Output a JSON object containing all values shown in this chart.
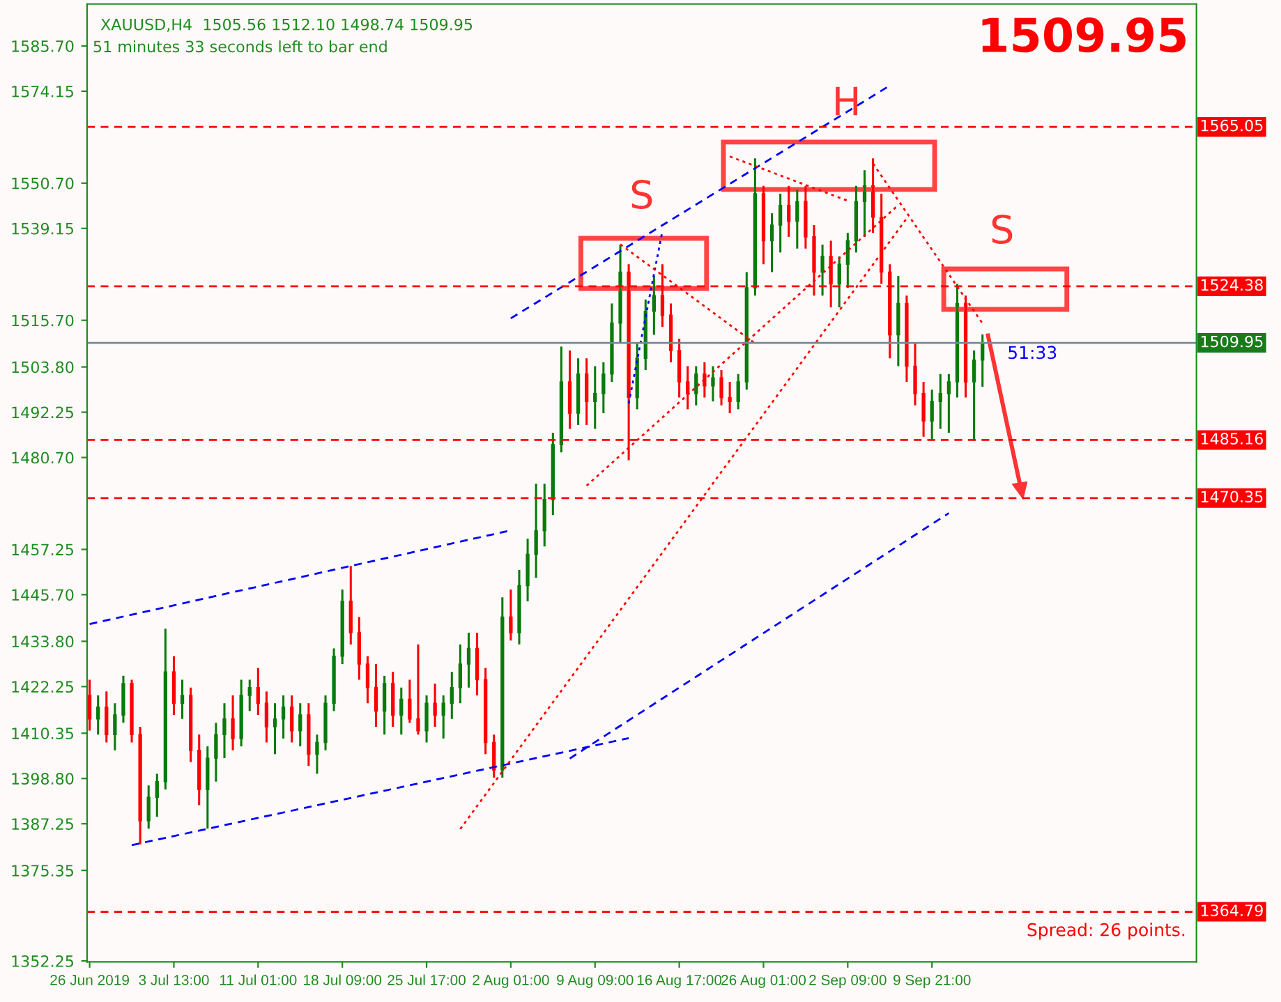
{
  "chart_data": {
    "type": "candlestick",
    "title": "XAUUSD,H4  1505.56 1512.10 1498.74 1509.95",
    "subtitle": "51 minutes 33 seconds left to bar end",
    "colors": [
      "#ff0000",
      "#0a7a0a",
      "#ff0000",
      "#0a7a0a",
      "#0a7a0a",
      "#ff0000",
      "#ff0000",
      "#0a7a0a",
      "#0a7a0a",
      "#0a7a0a",
      "#ff0000",
      "#0a7a0a",
      "#ff0000",
      "#ff0000",
      "#0a7a0a",
      "#0a7a0a",
      "#0a7a0a",
      "#ff0000",
      "#0a7a0a",
      "#0a7a0a",
      "#ff0000",
      "#ff0000",
      "#0a7a0a",
      "#0a7a0a",
      "#ff0000",
      "#0a7a0a",
      "#ff0000",
      "#0a7a0a",
      "#0a7a0a",
      "#0a7a0a",
      "#0a7a0a",
      "#ff0000",
      "#ff0000",
      "#ff0000",
      "#ff0000",
      "#0a7a0a",
      "#ff0000",
      "#0a7a0a",
      "#ff0000",
      "#ff0000",
      "#0a7a0a",
      "#ff0000",
      "#0a7a0a",
      "#0a7a0a",
      "#0a7a0a",
      "#0a7a0a",
      "#ff0000",
      "#ff0000",
      "#ff0000",
      "#0a7a0a",
      "#ff0000",
      "#0a7a0a",
      "#0a7a0a",
      "#0a7a0a",
      "#0a7a0a",
      "#0a7a0a",
      "#0a7a0a",
      "#ff0000",
      "#0a7a0a",
      "#ff0000",
      "#0a7a0a",
      "#0a7a0a",
      "#0a7a0a",
      "#0a7a0a",
      "#ff0000",
      "#0a7a0a",
      "#0a7a0a",
      "#0a7a0a",
      "#ff0000",
      "#ff0000",
      "#ff0000",
      "#ff0000",
      "#0a7a0a",
      "#ff0000",
      "#0a7a0a",
      "#ff0000",
      "#ff0000",
      "#0a7a0a",
      "#0a7a0a",
      "#0a7a0a",
      "#ff0000",
      "#0a7a0a",
      "#0a7a0a",
      "#ff0000",
      "#0a7a0a",
      "#ff0000",
      "#ff0000",
      "#0a7a0a",
      "#ff0000",
      "#0a7a0a",
      "#0a7a0a",
      "#0a7a0a",
      "#0a7a0a",
      "#ff0000",
      "#ff0000",
      "#ff0000",
      "#0a7a0a",
      "#ff0000",
      "#ff0000",
      "#ff0000",
      "#0a7a0a",
      "#0a7a0a",
      "#0a7a0a",
      "#0a7a0a",
      "#ff0000",
      "#0a7a0a",
      "#0a7a0a"
    ],
    "categories": [
      "26 Jun 2019",
      null,
      null,
      null,
      null,
      null,
      null,
      null,
      null,
      null,
      "3 Jul 13:00",
      null,
      null,
      null,
      null,
      null,
      null,
      null,
      null,
      null,
      "11 Jul 01:00",
      null,
      null,
      null,
      null,
      null,
      null,
      null,
      null,
      null,
      "18 Jul 09:00",
      null,
      null,
      null,
      null,
      null,
      null,
      null,
      null,
      null,
      "25 Jul 17:00",
      null,
      null,
      null,
      null,
      null,
      null,
      null,
      null,
      null,
      "2 Aug 01:00",
      null,
      null,
      null,
      null,
      null,
      null,
      null,
      null,
      null,
      "9 Aug 09:00",
      null,
      null,
      null,
      null,
      null,
      null,
      null,
      null,
      null,
      "16 Aug 17:00",
      null,
      null,
      null,
      null,
      null,
      null,
      null,
      null,
      null,
      "26 Aug 01:00",
      null,
      null,
      null,
      null,
      null,
      null,
      null,
      null,
      null,
      "2 Sep 09:00",
      null,
      null,
      null,
      null,
      null,
      null,
      null,
      null,
      null,
      "9 Sep 21:00",
      null,
      null,
      null,
      null,
      null,
      null
    ],
    "ohlc": [
      [
        1420,
        1424,
        1411,
        1414
      ],
      [
        1414,
        1420,
        1410,
        1417
      ],
      [
        1417,
        1421,
        1408,
        1410
      ],
      [
        1410,
        1418,
        1406,
        1415
      ],
      [
        1415,
        1425,
        1413,
        1423
      ],
      [
        1423,
        1424,
        1408,
        1410
      ],
      [
        1410,
        1412,
        1382,
        1388
      ],
      [
        1388,
        1397,
        1386,
        1394
      ],
      [
        1394,
        1400,
        1389,
        1398
      ],
      [
        1398,
        1437,
        1396,
        1426
      ],
      [
        1426,
        1430,
        1415,
        1418
      ],
      [
        1418,
        1424,
        1414,
        1420
      ],
      [
        1420,
        1422,
        1403,
        1406
      ],
      [
        1406,
        1410,
        1392,
        1396
      ],
      [
        1396,
        1407,
        1386,
        1404
      ],
      [
        1404,
        1413,
        1398,
        1410
      ],
      [
        1410,
        1418,
        1404,
        1414
      ],
      [
        1414,
        1420,
        1406,
        1409
      ],
      [
        1409,
        1424,
        1407,
        1420
      ],
      [
        1420,
        1424,
        1416,
        1422
      ],
      [
        1422,
        1427,
        1415,
        1418
      ],
      [
        1418,
        1421,
        1408,
        1412
      ],
      [
        1412,
        1418,
        1405,
        1414
      ],
      [
        1414,
        1420,
        1409,
        1417
      ],
      [
        1417,
        1420,
        1408,
        1411
      ],
      [
        1411,
        1418,
        1407,
        1415
      ],
      [
        1415,
        1418,
        1402,
        1405
      ],
      [
        1405,
        1410,
        1400,
        1408
      ],
      [
        1408,
        1420,
        1406,
        1418
      ],
      [
        1418,
        1432,
        1416,
        1430
      ],
      [
        1430,
        1447,
        1428,
        1444
      ],
      [
        1444,
        1453,
        1433,
        1436
      ],
      [
        1436,
        1440,
        1424,
        1428
      ],
      [
        1428,
        1430,
        1418,
        1422
      ],
      [
        1422,
        1428,
        1412,
        1416
      ],
      [
        1416,
        1425,
        1410,
        1423
      ],
      [
        1423,
        1426,
        1412,
        1415
      ],
      [
        1415,
        1422,
        1410,
        1419
      ],
      [
        1419,
        1424,
        1413,
        1414
      ],
      [
        1414,
        1433,
        1410,
        1411
      ],
      [
        1411,
        1420,
        1408,
        1418
      ],
      [
        1418,
        1423,
        1412,
        1415
      ],
      [
        1415,
        1420,
        1409,
        1418
      ],
      [
        1418,
        1426,
        1414,
        1422
      ],
      [
        1422,
        1433,
        1418,
        1428
      ],
      [
        1428,
        1436,
        1422,
        1432
      ],
      [
        1432,
        1436,
        1420,
        1424
      ],
      [
        1424,
        1427,
        1405,
        1408
      ],
      [
        1408,
        1410,
        1399,
        1401
      ],
      [
        1401,
        1445,
        1399,
        1440
      ],
      [
        1440,
        1447,
        1434,
        1436
      ],
      [
        1436,
        1452,
        1433,
        1448
      ],
      [
        1448,
        1460,
        1444,
        1456
      ],
      [
        1456,
        1474,
        1450,
        1462
      ],
      [
        1462,
        1474,
        1458,
        1470
      ],
      [
        1470,
        1487,
        1466,
        1484
      ],
      [
        1484,
        1509,
        1482,
        1500
      ],
      [
        1500,
        1508,
        1488,
        1492
      ],
      [
        1492,
        1506,
        1489,
        1502
      ],
      [
        1502,
        1506,
        1489,
        1495
      ],
      [
        1495,
        1504,
        1488,
        1497
      ],
      [
        1497,
        1505,
        1492,
        1502
      ],
      [
        1502,
        1520,
        1500,
        1515
      ],
      [
        1515,
        1535,
        1510,
        1528
      ],
      [
        1528,
        1530,
        1480,
        1496
      ],
      [
        1496,
        1510,
        1493,
        1506
      ],
      [
        1506,
        1521,
        1503,
        1518
      ],
      [
        1518,
        1527,
        1512,
        1522
      ],
      [
        1522,
        1530,
        1514,
        1517
      ],
      [
        1517,
        1520,
        1505,
        1508
      ],
      [
        1508,
        1511,
        1496,
        1500
      ],
      [
        1500,
        1504,
        1493,
        1497
      ],
      [
        1497,
        1504,
        1494,
        1502
      ],
      [
        1502,
        1505,
        1496,
        1499
      ],
      [
        1499,
        1504,
        1495,
        1501
      ],
      [
        1501,
        1503,
        1494,
        1496
      ],
      [
        1496,
        1500,
        1492,
        1495
      ],
      [
        1495,
        1502,
        1493,
        1500
      ],
      [
        1500,
        1528,
        1498,
        1524
      ],
      [
        1524,
        1557,
        1522,
        1548
      ],
      [
        1548,
        1550,
        1530,
        1536
      ],
      [
        1536,
        1543,
        1528,
        1540
      ],
      [
        1540,
        1548,
        1533,
        1545
      ],
      [
        1545,
        1550,
        1537,
        1541
      ],
      [
        1541,
        1549,
        1534,
        1546
      ],
      [
        1546,
        1550,
        1534,
        1537
      ],
      [
        1537,
        1540,
        1522,
        1528
      ],
      [
        1528,
        1535,
        1522,
        1532
      ],
      [
        1532,
        1536,
        1519,
        1525
      ],
      [
        1525,
        1532,
        1519,
        1530
      ],
      [
        1530,
        1538,
        1524,
        1536
      ],
      [
        1536,
        1550,
        1533,
        1546
      ],
      [
        1546,
        1554,
        1537,
        1550
      ],
      [
        1550,
        1557,
        1538,
        1542
      ],
      [
        1542,
        1548,
        1525,
        1528
      ],
      [
        1528,
        1530,
        1506,
        1512
      ],
      [
        1512,
        1527,
        1504,
        1520
      ],
      [
        1520,
        1522,
        1500,
        1504
      ],
      [
        1504,
        1510,
        1494,
        1497
      ],
      [
        1497,
        1500,
        1486,
        1490
      ],
      [
        1490,
        1498,
        1485,
        1495
      ],
      [
        1495,
        1502,
        1488,
        1497
      ],
      [
        1497,
        1502,
        1487,
        1500
      ],
      [
        1500,
        1525,
        1496,
        1520
      ],
      [
        1520,
        1522,
        1496,
        1500
      ],
      [
        1500,
        1508,
        1485,
        1505.56
      ],
      [
        1505.56,
        1512.1,
        1498.74,
        1509.95
      ]
    ],
    "series": [
      {
        "type": "line",
        "color": "#0000ff",
        "line_style": "dashed",
        "values": [
          1438.2,
          null,
          null,
          null,
          null,
          null,
          null,
          null,
          null,
          null,
          null,
          null,
          null,
          null,
          null,
          null,
          null,
          null,
          null,
          null,
          null,
          null,
          null,
          null,
          null,
          null,
          null,
          null,
          null,
          null,
          null,
          null,
          null,
          null,
          null,
          null,
          null,
          null,
          null,
          null,
          null,
          null,
          null,
          null,
          null,
          null,
          null,
          null,
          null,
          null,
          1462.1,
          null,
          null,
          null,
          null,
          null,
          null,
          null,
          null,
          null,
          null,
          null,
          null,
          null,
          null,
          null,
          null,
          null,
          null,
          null,
          null,
          null,
          null,
          null,
          null,
          null,
          null,
          null,
          null,
          null,
          null,
          null,
          null,
          null,
          null,
          null,
          null,
          null,
          null,
          null,
          null,
          null,
          null,
          null,
          null,
          null,
          null,
          null,
          null,
          null,
          null,
          null,
          null,
          null,
          null,
          null,
          null
        ]
      },
      {
        "type": "line",
        "color": "#0000ff",
        "line_style": "dashed",
        "values": [
          null,
          null,
          null,
          null,
          null,
          1381.8,
          null,
          null,
          null,
          null,
          null,
          null,
          null,
          null,
          null,
          null,
          null,
          null,
          null,
          null,
          null,
          null,
          null,
          null,
          null,
          null,
          null,
          null,
          null,
          null,
          null,
          null,
          null,
          null,
          null,
          null,
          null,
          null,
          null,
          null,
          null,
          null,
          null,
          null,
          null,
          null,
          null,
          null,
          null,
          null,
          null,
          null,
          null,
          null,
          null,
          null,
          null,
          null,
          null,
          null,
          null,
          null,
          null,
          null,
          1409.1,
          null,
          null,
          null,
          null,
          null,
          null,
          null,
          null,
          null,
          null,
          null,
          null,
          null,
          null,
          null,
          null,
          null,
          null,
          null,
          null,
          null,
          null,
          null,
          null,
          null,
          null,
          null,
          null,
          null,
          null,
          null,
          null,
          null,
          null,
          null,
          null,
          null,
          null,
          null,
          null,
          null,
          null
        ]
      },
      {
        "type": "line",
        "color": "#0000ff",
        "line_style": "dashed",
        "values": [
          null,
          null,
          null,
          null,
          null,
          null,
          null,
          null,
          null,
          null,
          null,
          null,
          null,
          null,
          null,
          null,
          null,
          null,
          null,
          null,
          null,
          null,
          null,
          null,
          null,
          null,
          null,
          null,
          null,
          null,
          null,
          null,
          null,
          null,
          null,
          null,
          null,
          null,
          null,
          null,
          null,
          null,
          null,
          null,
          null,
          null,
          null,
          null,
          null,
          null,
          null,
          null,
          null,
          null,
          null,
          null,
          null,
          1403.9,
          null,
          null,
          null,
          null,
          null,
          null,
          null,
          null,
          null,
          null,
          null,
          null,
          null,
          null,
          null,
          null,
          null,
          null,
          null,
          null,
          null,
          null,
          null,
          null,
          null,
          null,
          null,
          null,
          null,
          null,
          null,
          null,
          null,
          null,
          null,
          null,
          null,
          null,
          null,
          null,
          null,
          null,
          null,
          null,
          1466.5,
          null,
          null,
          null,
          null
        ]
      },
      {
        "type": "line",
        "color": "#0000ff",
        "line_style": "dashed",
        "values": [
          null,
          null,
          null,
          null,
          null,
          null,
          null,
          null,
          null,
          null,
          null,
          null,
          null,
          null,
          null,
          null,
          null,
          null,
          null,
          null,
          null,
          null,
          null,
          null,
          null,
          null,
          null,
          null,
          null,
          null,
          null,
          null,
          null,
          null,
          null,
          null,
          null,
          null,
          null,
          null,
          null,
          null,
          null,
          null,
          null,
          null,
          null,
          null,
          null,
          null,
          1516.2,
          null,
          null,
          null,
          null,
          null,
          null,
          null,
          null,
          null,
          null,
          null,
          null,
          null,
          null,
          null,
          null,
          null,
          null,
          null,
          null,
          null,
          null,
          null,
          null,
          null,
          null,
          null,
          null,
          null,
          null,
          null,
          null,
          null,
          null,
          null,
          null,
          null,
          null,
          null,
          null,
          null,
          null,
          null,
          null,
          1575.6,
          null,
          null,
          null,
          null,
          null,
          null,
          null,
          null,
          null,
          null,
          null
        ]
      },
      {
        "type": "line",
        "color": "#0000ff",
        "line_style": "dotted",
        "values": [
          null,
          null,
          null,
          null,
          null,
          null,
          null,
          null,
          null,
          null,
          null,
          null,
          null,
          null,
          null,
          null,
          null,
          null,
          null,
          null,
          null,
          null,
          null,
          null,
          null,
          null,
          null,
          null,
          null,
          null,
          null,
          null,
          null,
          null,
          null,
          null,
          null,
          null,
          null,
          null,
          null,
          null,
          null,
          null,
          null,
          null,
          null,
          null,
          null,
          null,
          null,
          null,
          null,
          null,
          null,
          null,
          null,
          null,
          null,
          null,
          null,
          null,
          null,
          null,
          1494.5,
          null,
          null,
          null,
          1538.5,
          null,
          null,
          null,
          null,
          null,
          null,
          null,
          null,
          null,
          null,
          null,
          null,
          null,
          null,
          null,
          null,
          null,
          null,
          null,
          null,
          null,
          null,
          null,
          null,
          null,
          null,
          null,
          null,
          null,
          null,
          null,
          null,
          null,
          null,
          null,
          null,
          null,
          null
        ]
      },
      {
        "type": "line",
        "color": "#ff0000",
        "line_style": "dotted",
        "values": [
          null,
          null,
          null,
          null,
          null,
          null,
          null,
          null,
          null,
          null,
          null,
          null,
          null,
          null,
          null,
          null,
          null,
          null,
          null,
          null,
          null,
          null,
          null,
          null,
          null,
          null,
          null,
          null,
          null,
          null,
          null,
          null,
          null,
          null,
          null,
          null,
          null,
          null,
          null,
          null,
          null,
          null,
          null,
          null,
          1385.9,
          null,
          null,
          null,
          null,
          null,
          null,
          null,
          null,
          null,
          null,
          null,
          null,
          null,
          null,
          null,
          null,
          null,
          null,
          null,
          null,
          null,
          null,
          null,
          null,
          null,
          null,
          null,
          null,
          null,
          null,
          null,
          null,
          null,
          null,
          null,
          null,
          null,
          null,
          null,
          null,
          null,
          null,
          null,
          null,
          null,
          null,
          null,
          null,
          null,
          null,
          null,
          null,
          1541.7,
          null,
          null,
          null,
          null,
          null,
          null,
          null,
          null,
          null
        ]
      },
      {
        "type": "line",
        "color": "#ff0000",
        "line_style": "dotted",
        "values": [
          null,
          null,
          null,
          null,
          null,
          null,
          null,
          null,
          null,
          null,
          null,
          null,
          null,
          null,
          null,
          null,
          null,
          null,
          null,
          null,
          null,
          null,
          null,
          null,
          null,
          null,
          null,
          null,
          null,
          null,
          null,
          null,
          null,
          null,
          null,
          null,
          null,
          null,
          null,
          null,
          null,
          null,
          null,
          null,
          null,
          null,
          null,
          null,
          null,
          null,
          null,
          null,
          null,
          null,
          null,
          null,
          null,
          null,
          null,
          1473.5,
          null,
          null,
          null,
          null,
          null,
          null,
          null,
          null,
          null,
          null,
          null,
          null,
          null,
          null,
          null,
          null,
          null,
          null,
          null,
          null,
          null,
          null,
          null,
          null,
          null,
          null,
          null,
          null,
          null,
          null,
          null,
          null,
          null,
          null,
          null,
          null,
          1545.1,
          null,
          null,
          null,
          null,
          null,
          null,
          null,
          null,
          null,
          null
        ]
      },
      {
        "type": "line",
        "color": "#ff0000",
        "line_style": "dotted",
        "values": [
          null,
          null,
          null,
          null,
          null,
          null,
          null,
          null,
          null,
          null,
          null,
          null,
          null,
          null,
          null,
          null,
          null,
          null,
          null,
          null,
          null,
          null,
          null,
          null,
          null,
          null,
          null,
          null,
          null,
          null,
          null,
          null,
          null,
          null,
          null,
          null,
          null,
          null,
          null,
          null,
          null,
          null,
          null,
          null,
          null,
          null,
          null,
          null,
          null,
          null,
          null,
          null,
          null,
          null,
          null,
          null,
          null,
          null,
          null,
          null,
          null,
          null,
          null,
          1535.1,
          null,
          null,
          null,
          null,
          null,
          null,
          null,
          null,
          null,
          null,
          null,
          null,
          null,
          null,
          null,
          1509.8,
          null,
          null,
          null,
          null,
          null,
          null,
          null,
          null,
          null,
          null,
          null,
          null,
          null,
          null,
          null,
          null,
          null,
          null,
          null,
          null,
          null,
          null,
          null,
          null,
          null,
          null,
          null
        ]
      },
      {
        "type": "line",
        "color": "#ff0000",
        "line_style": "dotted",
        "values": [
          null,
          null,
          null,
          null,
          null,
          null,
          null,
          null,
          null,
          null,
          null,
          null,
          null,
          null,
          null,
          null,
          null,
          null,
          null,
          null,
          null,
          null,
          null,
          null,
          null,
          null,
          null,
          null,
          null,
          null,
          null,
          null,
          null,
          null,
          null,
          null,
          null,
          null,
          null,
          null,
          null,
          null,
          null,
          null,
          null,
          null,
          null,
          null,
          null,
          null,
          null,
          null,
          null,
          null,
          null,
          null,
          null,
          null,
          null,
          null,
          null,
          null,
          null,
          null,
          null,
          null,
          null,
          null,
          null,
          null,
          null,
          null,
          null,
          null,
          null,
          null,
          null,
          null,
          null,
          null,
          null,
          null,
          null,
          null,
          null,
          null,
          null,
          null,
          null,
          null,
          null,
          null,
          null,
          1555.7,
          null,
          null,
          null,
          null,
          null,
          null,
          null,
          null,
          null,
          null,
          null,
          null,
          1514.9
        ]
      },
      {
        "type": "line",
        "color": "#ff0000",
        "line_style": "dotted",
        "values": [
          null,
          null,
          null,
          null,
          null,
          null,
          null,
          null,
          null,
          null,
          null,
          null,
          null,
          null,
          null,
          null,
          null,
          null,
          null,
          null,
          null,
          null,
          null,
          null,
          null,
          null,
          null,
          null,
          null,
          null,
          null,
          null,
          null,
          null,
          null,
          null,
          null,
          null,
          null,
          null,
          null,
          null,
          null,
          null,
          null,
          null,
          null,
          null,
          null,
          null,
          null,
          null,
          null,
          null,
          null,
          null,
          null,
          null,
          null,
          null,
          null,
          null,
          null,
          null,
          null,
          null,
          null,
          null,
          null,
          null,
          null,
          null,
          null,
          null,
          null,
          null,
          1557.5,
          null,
          null,
          null,
          null,
          null,
          null,
          null,
          null,
          null,
          null,
          null,
          null,
          null,
          1546.2,
          null,
          null,
          null,
          null,
          null,
          null,
          null,
          null,
          null,
          null,
          null,
          null,
          null,
          null,
          null,
          null
        ]
      }
    ],
    "ylim": [
      1352,
      1596.4
    ],
    "yticks": [
      {
        "value": 1585.7,
        "label": "1585.70"
      },
      {
        "value": 1574.15,
        "label": "1574.15"
      },
      {
        "value": 1550.7,
        "label": "1550.70"
      },
      {
        "value": 1539.15,
        "label": "1539.15"
      },
      {
        "value": 1515.7,
        "label": "1515.70"
      },
      {
        "value": 1503.8,
        "label": "1503.80"
      },
      {
        "value": 1492.25,
        "label": "1492.25"
      },
      {
        "value": 1480.7,
        "label": "1480.70"
      },
      {
        "value": 1457.25,
        "label": "1457.25"
      },
      {
        "value": 1445.7,
        "label": "1445.70"
      },
      {
        "value": 1433.8,
        "label": "1433.80"
      },
      {
        "value": 1422.25,
        "label": "1422.25"
      },
      {
        "value": 1410.35,
        "label": "1410.35"
      },
      {
        "value": 1398.8,
        "label": "1398.80"
      },
      {
        "value": 1387.25,
        "label": "1387.25"
      },
      {
        "value": 1375.35,
        "label": "1375.35"
      },
      {
        "value": 1352.25,
        "label": "1352.25"
      }
    ],
    "ref_lines": [
      {
        "axis": "y",
        "value": 1565.05,
        "label": "1565.05",
        "color": "#ff0000",
        "line_style": "dashed"
      },
      {
        "axis": "y",
        "value": 1524.38,
        "label": "1524.38",
        "color": "#ff0000",
        "line_style": "dashed"
      },
      {
        "axis": "y",
        "value": 1509.95,
        "label": "1509.95",
        "color": "#778899",
        "line_style": "solid"
      },
      {
        "axis": "y",
        "value": 1485.16,
        "label": "1485.16",
        "color": "#ff0000",
        "line_style": "dashed"
      },
      {
        "axis": "y",
        "value": 1470.35,
        "label": "1470.35",
        "color": "#ff0000",
        "line_style": "dashed"
      },
      {
        "axis": "y",
        "value": 1364.79,
        "label": "1364.79",
        "color": "#ff0000",
        "line_style": "dashed"
      }
    ],
    "annotations": [
      "1509.95",
      "H",
      "S",
      "S",
      "Spread: 26 points.",
      "51:33"
    ]
  }
}
